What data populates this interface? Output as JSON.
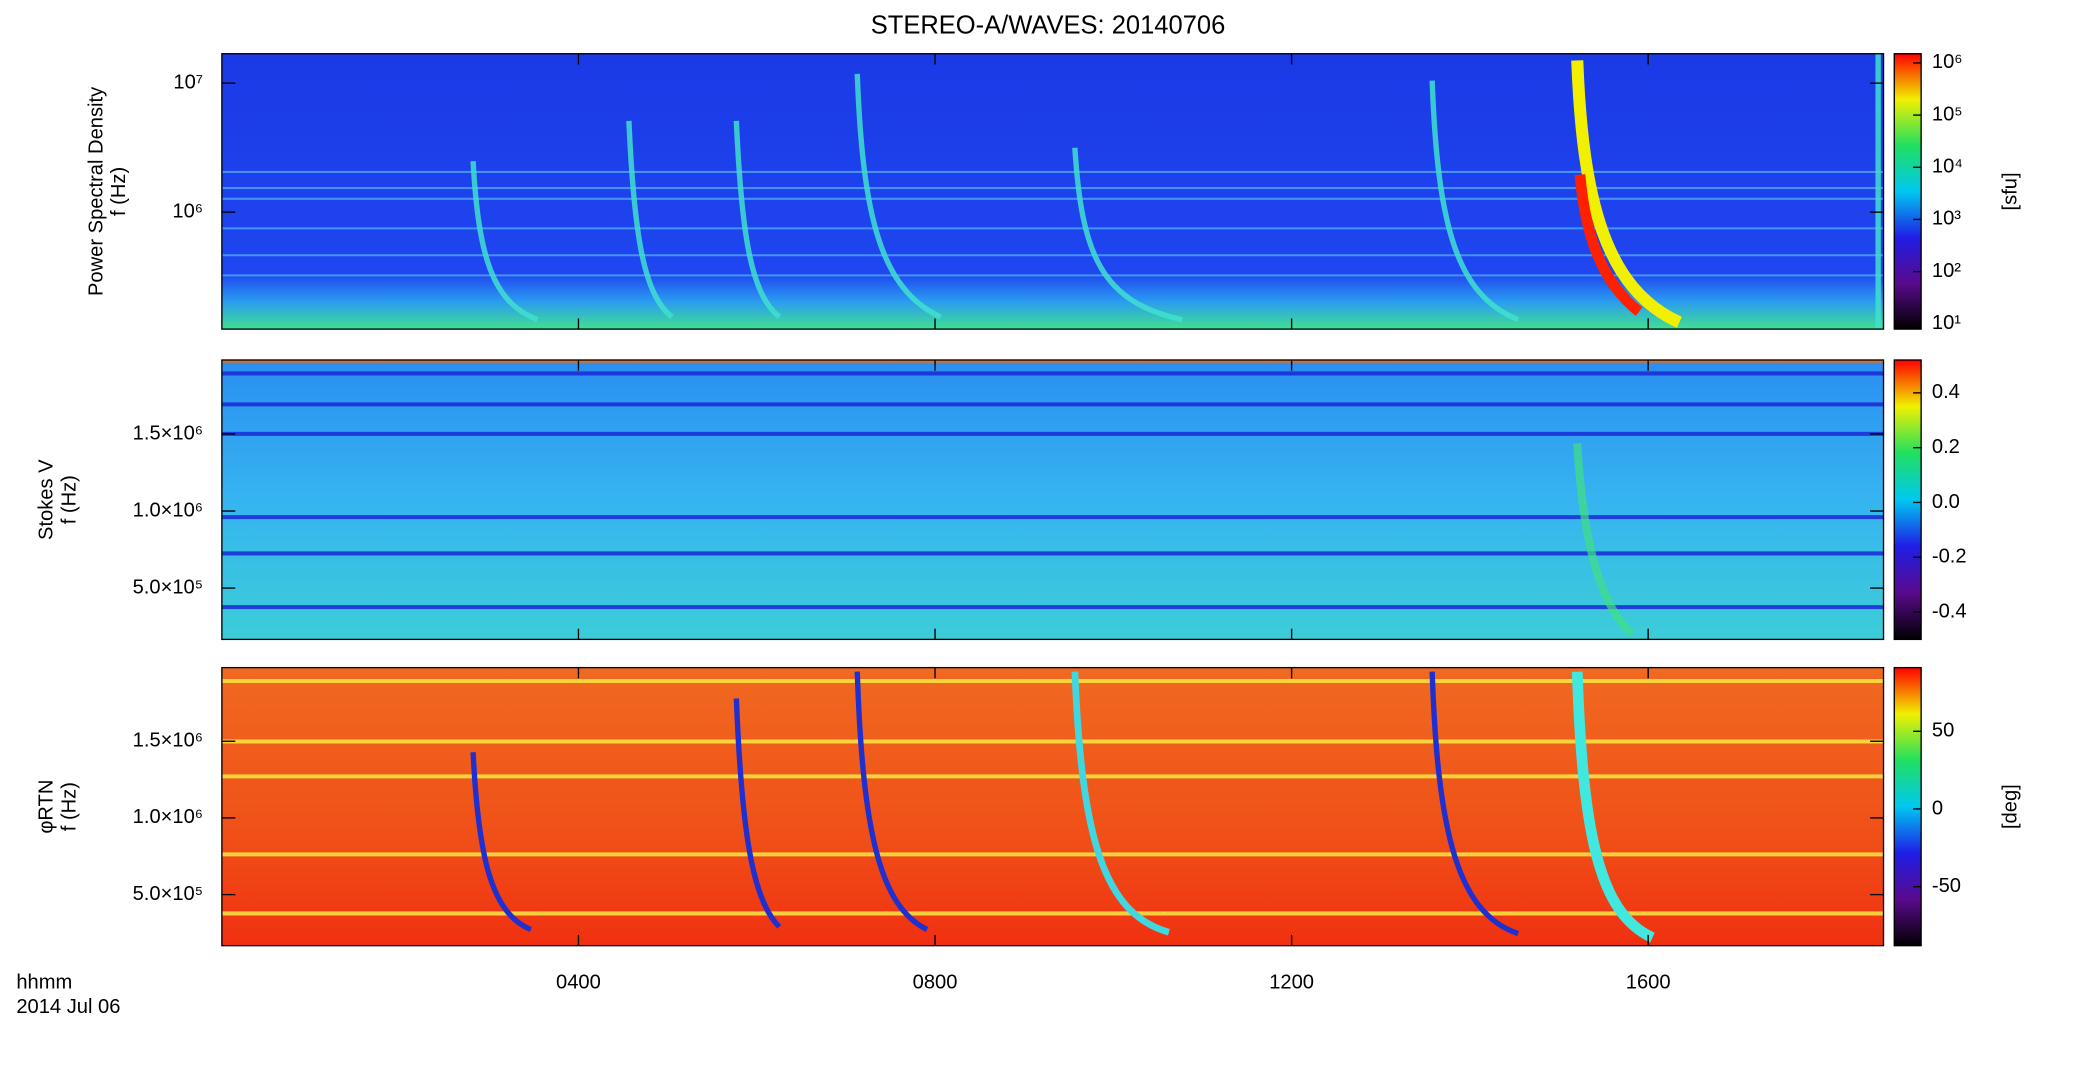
{
  "chart_data": [
    {
      "type": "heatmap",
      "title": "STEREO-A/WAVES: 20140706",
      "ylabel": [
        "Power Spectral Density",
        "f (Hz)"
      ],
      "yscale": "log",
      "ylim": [
        124000,
        16900000
      ],
      "yticks": [
        {
          "value": 1000000,
          "label": "10⁶"
        },
        {
          "value": 10000000,
          "label": "10⁷"
        }
      ],
      "colorbar": {
        "label": "[sfu]",
        "scale": "log",
        "clim": [
          7.9,
          1500000
        ],
        "ticks": [
          {
            "value": 10,
            "label": "10¹"
          },
          {
            "value": 100,
            "label": "10²"
          },
          {
            "value": 1000,
            "label": "10³"
          },
          {
            "value": 10000,
            "label": "10⁴"
          },
          {
            "value": 100000,
            "label": "10⁵"
          },
          {
            "value": 1000000,
            "label": "10⁶"
          }
        ],
        "colormap": [
          "#000000",
          "#5a0a8c",
          "#1e1ee6",
          "#00c8f0",
          "#20e060",
          "#f0f000",
          "#ff0000"
        ]
      }
    },
    {
      "type": "heatmap",
      "ylabel": [
        "Stokes V",
        "f (Hz)"
      ],
      "yscale": "linear",
      "ylim": [
        167000,
        1980000
      ],
      "yticks": [
        {
          "value": 500000,
          "label": "5.0×10⁵"
        },
        {
          "value": 1000000,
          "label": "1.0×10⁶"
        },
        {
          "value": 1500000,
          "label": "1.5×10⁶"
        }
      ],
      "colorbar": {
        "scale": "linear",
        "clim": [
          -0.5,
          0.52
        ],
        "ticks": [
          -0.4,
          -0.2,
          {
            "value": 0,
            "label": "0.0"
          },
          0.2,
          0.4
        ],
        "colormap": [
          "#000000",
          "#5a0a8c",
          "#1e1ee6",
          "#00c8f0",
          "#20e060",
          "#f0f000",
          "#ff0000"
        ]
      }
    },
    {
      "type": "heatmap",
      "ylabel": [
        "φRTN",
        "f (Hz)"
      ],
      "yscale": "linear",
      "ylim": [
        167000,
        1980000
      ],
      "yticks": [
        {
          "value": 500000,
          "label": "5.0×10⁵"
        },
        {
          "value": 1000000,
          "label": "1.0×10⁶"
        },
        {
          "value": 1500000,
          "label": "1.5×10⁶"
        }
      ],
      "colorbar": {
        "label": "[deg]",
        "scale": "linear",
        "clim": [
          -88,
          91
        ],
        "ticks": [
          -50,
          0,
          50
        ],
        "colormap": [
          "#000000",
          "#5a0a8c",
          "#1e1ee6",
          "#00c8f0",
          "#20e060",
          "#f0f000",
          "#ff0000"
        ]
      },
      "xlabel": [
        "hhmm",
        "2014 Jul 06"
      ],
      "xlim": [
        0,
        18.64
      ],
      "xticks": [
        {
          "value": 4,
          "label": "0400"
        },
        {
          "value": 8,
          "label": "0800"
        },
        {
          "value": 12,
          "label": "1200"
        },
        {
          "value": 16,
          "label": "1600"
        }
      ]
    }
  ]
}
